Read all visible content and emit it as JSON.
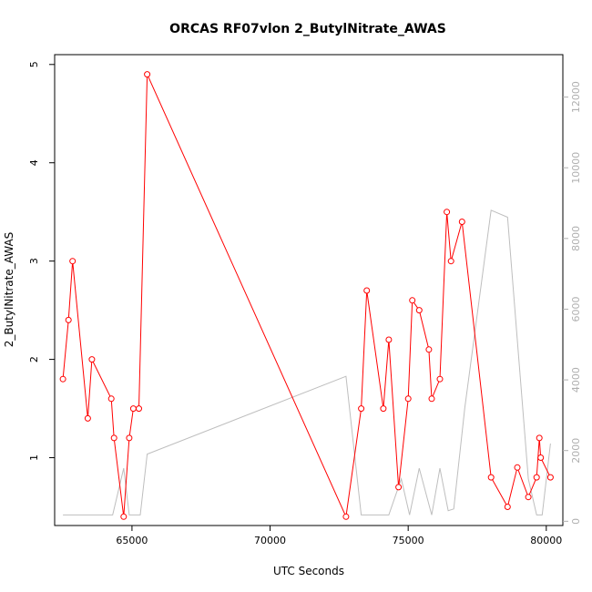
{
  "chart_data": {
    "type": "line",
    "title": "ORCAS RF07vlon 2_ButylNitrate_AWAS",
    "xlabel": "UTC Seconds",
    "ylabel": "2_ButylNitrate_AWAS",
    "xlim": [
      62200,
      80600
    ],
    "ylim": [
      0.31,
      5.1
    ],
    "y2lim": [
      -120,
      13200
    ],
    "x_ticks": [
      65000,
      70000,
      75000,
      80000
    ],
    "y_ticks": [
      1,
      2,
      3,
      4,
      5
    ],
    "y2_ticks": [
      0,
      2000,
      4000,
      6000,
      8000,
      10000,
      12000
    ],
    "grid": false,
    "legend": "none",
    "colors": {
      "primary": "#ff0000",
      "secondary": "#bebebe"
    },
    "series": [
      {
        "axis": "left",
        "style": "line+open-circles",
        "color": "#ff0000",
        "x": [
          62500,
          62700,
          62850,
          63400,
          63550,
          64250,
          64350,
          64700,
          64900,
          65050,
          65250,
          65550,
          72750,
          73300,
          73500,
          74100,
          74300,
          74650,
          75000,
          75150,
          75400,
          75750,
          75850,
          76150,
          76400,
          76550,
          76950,
          78000,
          78600,
          78950,
          79350,
          79650,
          79750,
          79800,
          80150
        ],
        "y": [
          1.8,
          2.4,
          3.0,
          1.4,
          2.0,
          1.6,
          1.2,
          0.4,
          1.2,
          1.5,
          1.5,
          4.9,
          0.4,
          1.5,
          2.7,
          1.5,
          2.2,
          0.7,
          1.6,
          2.6,
          2.5,
          2.1,
          1.6,
          1.8,
          3.5,
          3.0,
          3.4,
          0.8,
          0.5,
          0.9,
          0.6,
          0.8,
          1.2,
          1.0,
          0.8
        ]
      },
      {
        "axis": "right",
        "style": "line",
        "color": "#bebebe",
        "x": [
          62500,
          63400,
          64300,
          64700,
          64900,
          65300,
          65550,
          72750,
          73300,
          74300,
          74750,
          75050,
          75400,
          75850,
          76150,
          76450,
          76650,
          77050,
          78000,
          78600,
          79350,
          79650,
          79850,
          80150
        ],
        "y": [
          180,
          180,
          180,
          1500,
          180,
          180,
          1900,
          4100,
          180,
          180,
          1200,
          180,
          1500,
          180,
          1500,
          300,
          350,
          3200,
          8800,
          8600,
          1200,
          180,
          180,
          2200
        ]
      }
    ]
  }
}
